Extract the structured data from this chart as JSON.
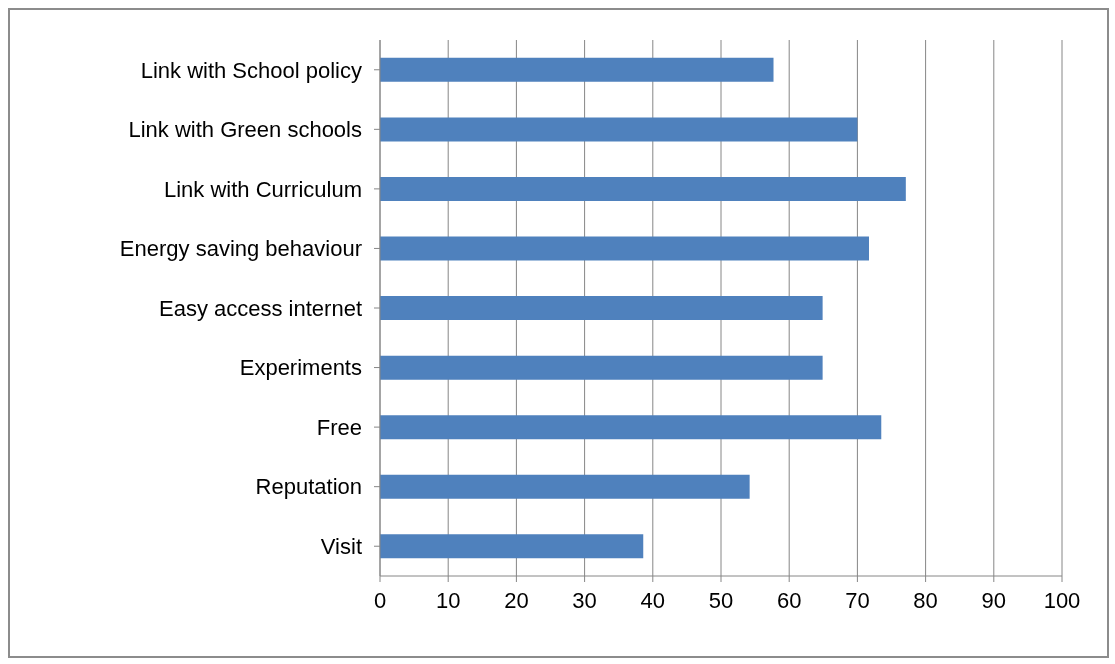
{
  "chart_data": {
    "type": "bar",
    "orientation": "horizontal",
    "categories": [
      "Link with School policy",
      "Link with Green schools",
      "Link with Curriculum",
      "Energy saving behaviour",
      "Easy access internet",
      "Experiments",
      "Free",
      "Reputation",
      "Visit"
    ],
    "values": [
      57.7,
      70,
      77.1,
      71.7,
      64.9,
      64.9,
      73.5,
      54.2,
      38.6
    ],
    "color": "#4f81bd",
    "xlim": [
      0,
      100
    ],
    "xticks": [
      0,
      10,
      20,
      30,
      40,
      50,
      60,
      70,
      80,
      90,
      100
    ],
    "grid": "x"
  }
}
